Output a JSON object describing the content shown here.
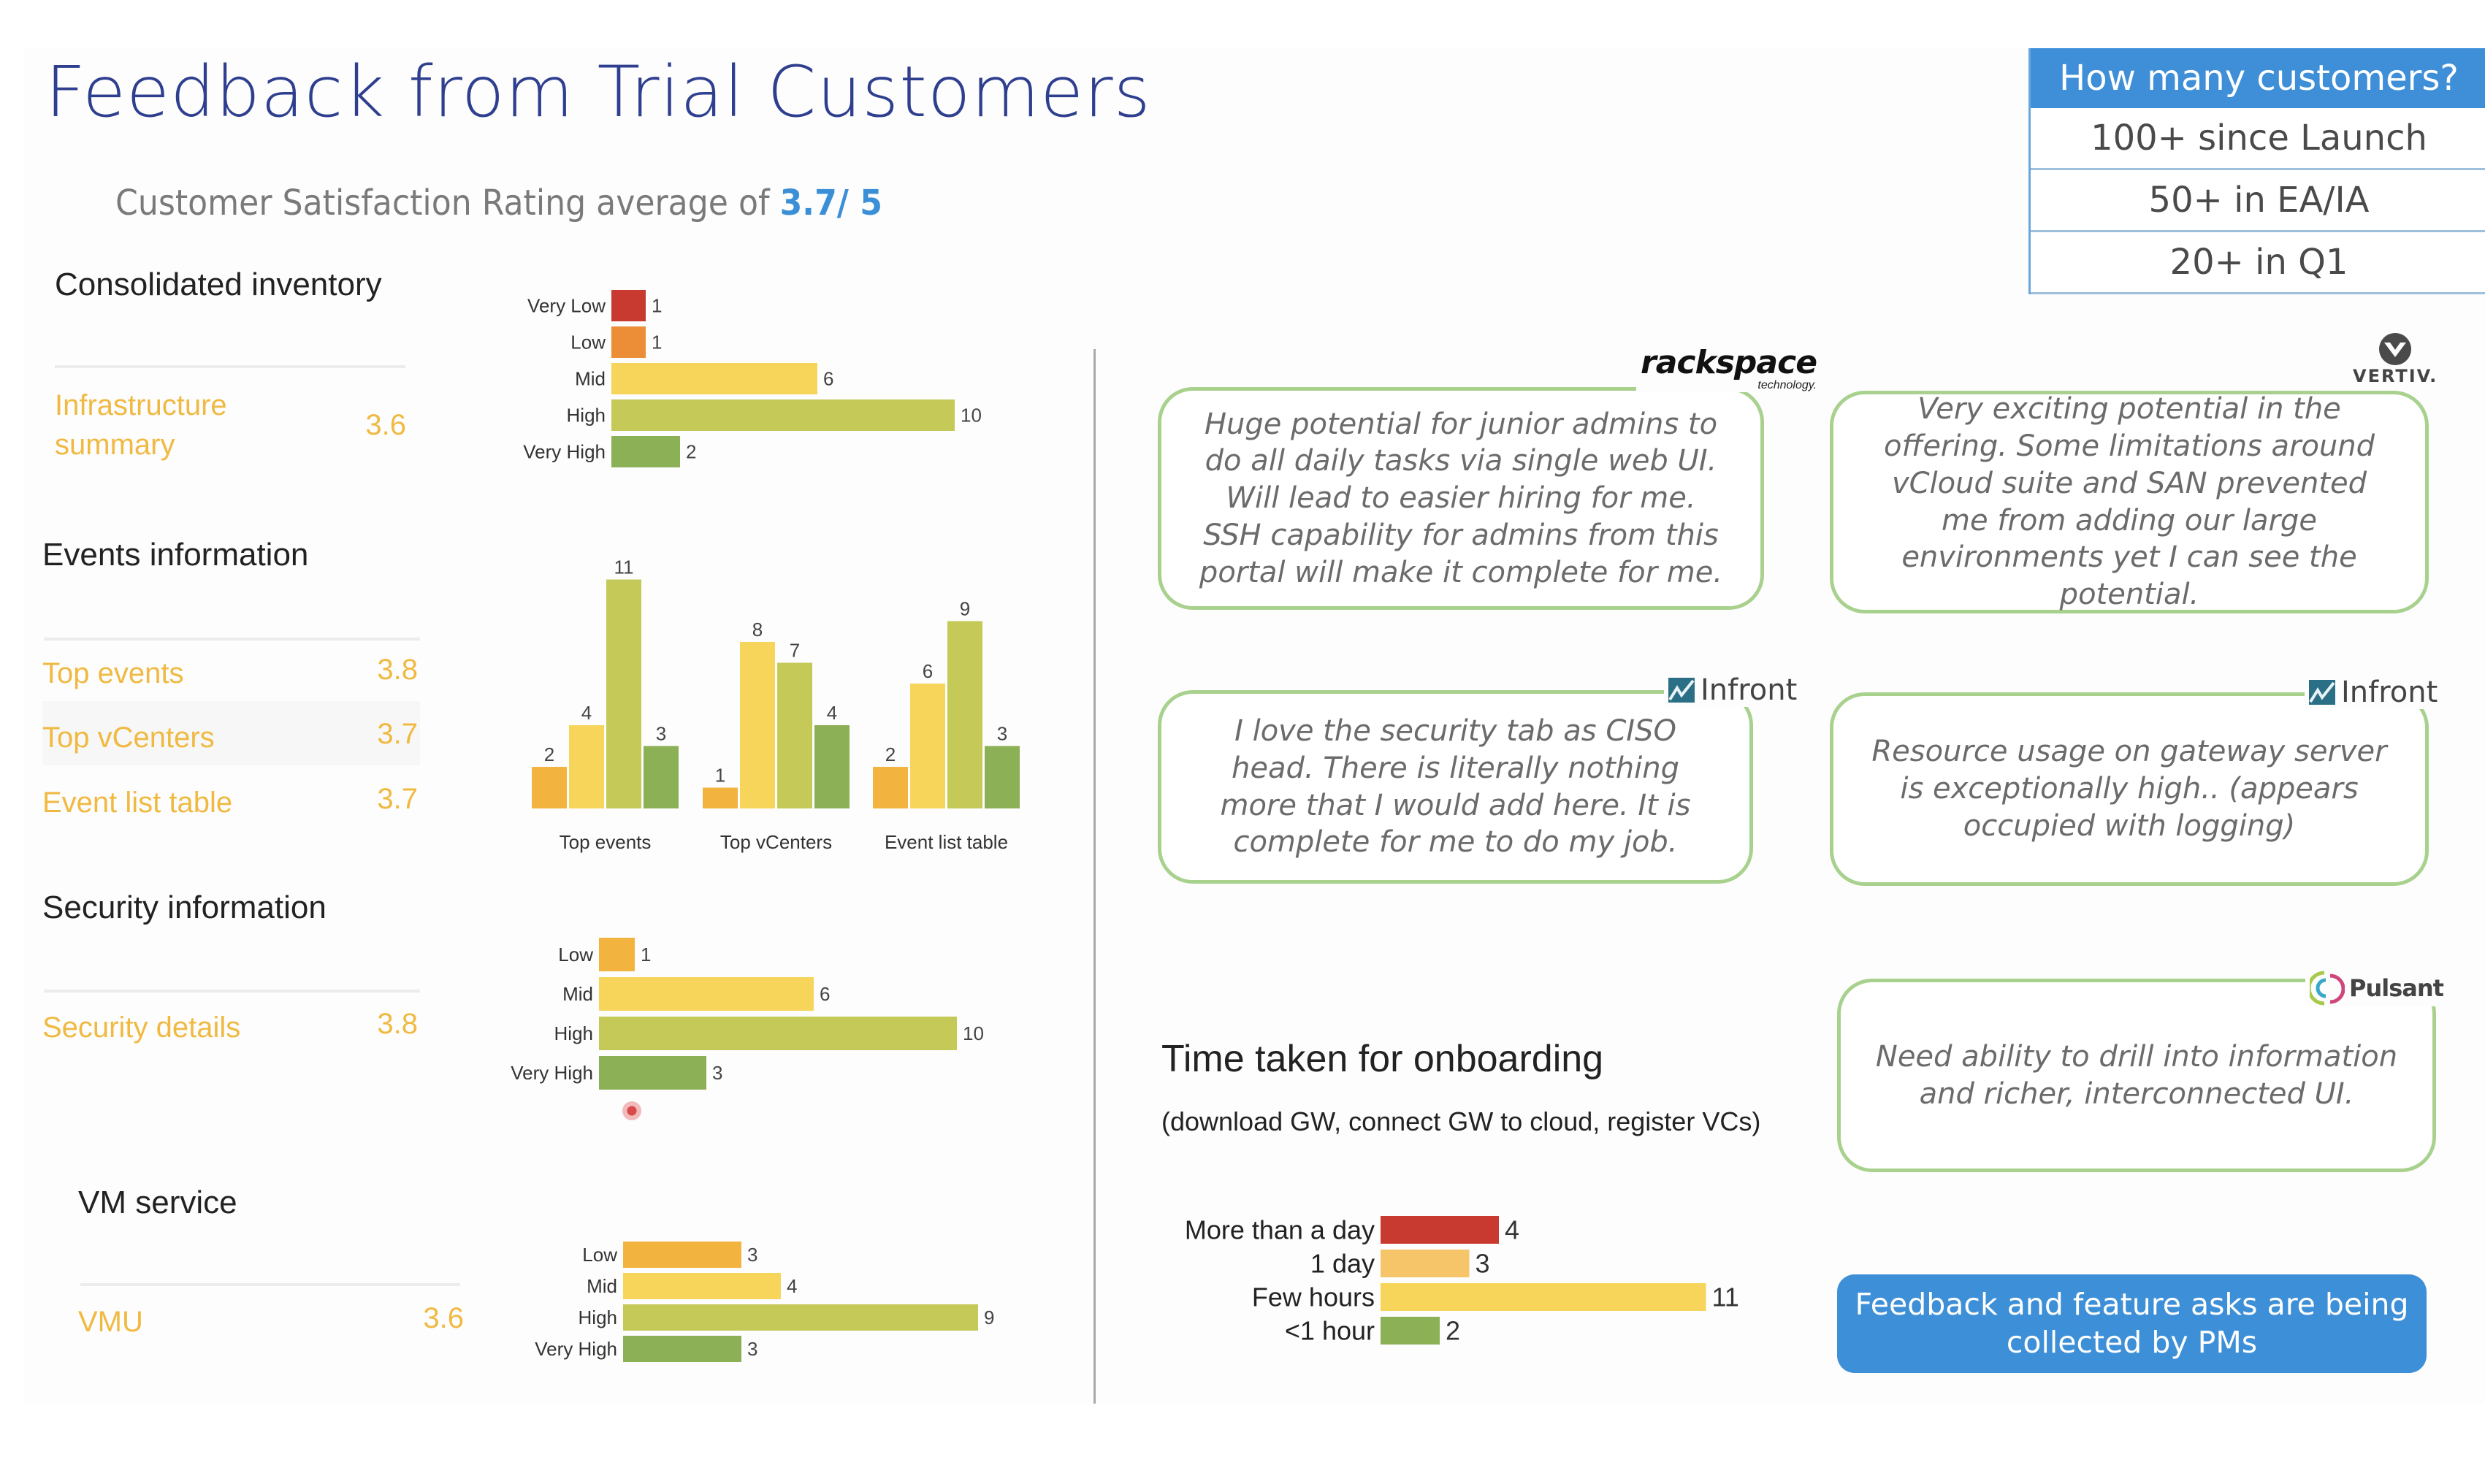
{
  "header": {
    "title": "Feedback from Trial Customers",
    "subtitle_prefix": "Customer Satisfaction Rating average of ",
    "subtitle_value": "3.7/ 5"
  },
  "customers": {
    "heading": "How many customers?",
    "rows": [
      "100+ since Launch",
      "50+ in EA/IA",
      "20+ in Q1"
    ]
  },
  "sections": {
    "inventory": {
      "title": "Consolidated inventory",
      "metrics": [
        {
          "label_line1": "Infrastructure",
          "label_line2": "summary",
          "value": "3.6"
        }
      ]
    },
    "events": {
      "title": "Events information",
      "metrics": [
        {
          "label": "Top events",
          "value": "3.8"
        },
        {
          "label": "Top vCenters",
          "value": "3.7"
        },
        {
          "label": "Event list table",
          "value": "3.7"
        }
      ]
    },
    "security": {
      "title": "Security information",
      "metrics": [
        {
          "label": "Security details",
          "value": "3.8"
        }
      ]
    },
    "vm": {
      "title": "VM service",
      "metrics": [
        {
          "label": "VMU",
          "value": "3.6"
        }
      ]
    }
  },
  "colors": {
    "very_low": "#c8392f",
    "low_red_orange": "#ec8e37",
    "low": "#f2b43f",
    "mid": "#f6d55a",
    "high": "#c4c957",
    "very_high": "#8cb055",
    "one_day": "#f6c56a",
    "accent_blue": "#3d8fd7",
    "card_border": "#a9d18e",
    "title_blue": "#2f3f8f",
    "metric_gold": "#f0b941"
  },
  "chart_data": [
    {
      "id": "inventory",
      "type": "bar",
      "orientation": "horizontal",
      "title": "Infrastructure summary rating distribution",
      "categories": [
        "Very Low",
        "Low",
        "Mid",
        "High",
        "Very High"
      ],
      "values": [
        1,
        1,
        6,
        10,
        2
      ],
      "xlim": [
        0,
        10
      ]
    },
    {
      "id": "events",
      "type": "bar",
      "orientation": "vertical",
      "title": "Events information rating distribution",
      "categories": [
        "Top events",
        "Top vCenters",
        "Event list table"
      ],
      "series": [
        {
          "name": "Low",
          "values": [
            2,
            1,
            2
          ]
        },
        {
          "name": "Mid",
          "values": [
            4,
            8,
            6
          ]
        },
        {
          "name": "High",
          "values": [
            11,
            7,
            9
          ]
        },
        {
          "name": "Very High",
          "values": [
            3,
            4,
            3
          ]
        }
      ],
      "ylim": [
        0,
        11
      ]
    },
    {
      "id": "security",
      "type": "bar",
      "orientation": "horizontal",
      "title": "Security details rating distribution",
      "categories": [
        "Low",
        "Mid",
        "High",
        "Very High"
      ],
      "values": [
        1,
        6,
        10,
        3
      ],
      "xlim": [
        0,
        10
      ]
    },
    {
      "id": "vm",
      "type": "bar",
      "orientation": "horizontal",
      "title": "VMU rating distribution",
      "categories": [
        "Low",
        "Mid",
        "High",
        "Very High"
      ],
      "values": [
        3,
        4,
        9,
        3
      ],
      "xlim": [
        0,
        9
      ]
    },
    {
      "id": "onboarding",
      "type": "bar",
      "orientation": "horizontal",
      "title": "Time taken for onboarding",
      "subtitle": "(download GW, connect GW to cloud, register VCs)",
      "categories": [
        "More than a day",
        "1 day",
        "Few hours",
        "<1 hour"
      ],
      "values": [
        4,
        3,
        11,
        2
      ],
      "xlim": [
        0,
        11
      ]
    }
  ],
  "feedback": [
    {
      "company": "rackspace",
      "company_sub": "technology.",
      "logo_icon": "rackspace-logo",
      "text": "Huge potential for junior admins to do all daily tasks via single web UI. Will lead to easier hiring for me. SSH capability for admins from this portal will make it complete for me."
    },
    {
      "company": "VERTIV.",
      "logo_icon": "vertiv-logo",
      "text": "Very exciting potential in the offering.  Some limitations around vCloud suite and SAN prevented me from adding our large environments yet I can see the potential."
    },
    {
      "company": "Infront",
      "logo_icon": "infront-logo",
      "text": "I love the security tab as CISO head. There is literally nothing more that I would add here. It is complete for me to do my job."
    },
    {
      "company": "Infront",
      "logo_icon": "infront-logo",
      "text": "Resource usage on gateway server is exceptionally high.. (appears occupied with logging)"
    },
    {
      "company": "Pulsant",
      "logo_icon": "pulsant-logo",
      "text": "Need ability to drill into information and richer, interconnected UI."
    }
  ],
  "onboarding": {
    "title": "Time taken for onboarding",
    "subtitle": "(download GW, connect GW to cloud, register VCs)"
  },
  "pm_note": "Feedback and feature asks are being collected by PMs"
}
